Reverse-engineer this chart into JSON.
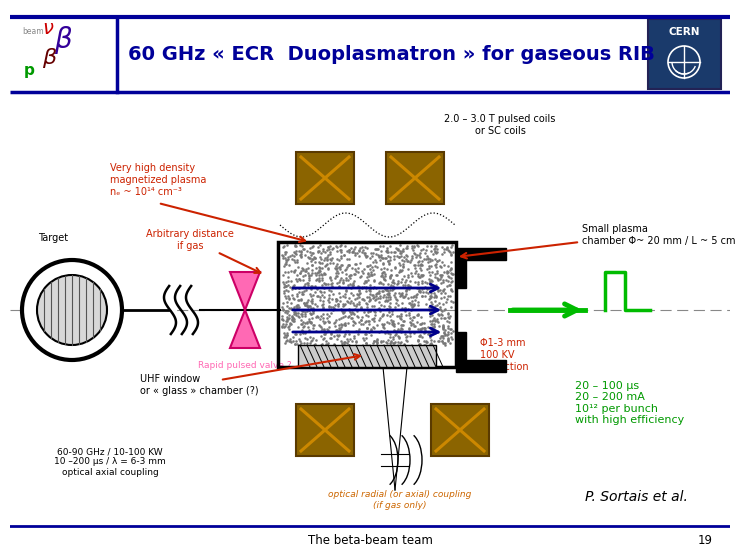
{
  "title": "60 GHz « ECR  Duoplasmatron » for gaseous RIB",
  "title_color": "#000099",
  "bg_color": "#ffffff",
  "footer_text": "The beta-beam team",
  "page_num": "19",
  "header_bar_color": "#000099",
  "annotations": {
    "coils_label": "2.0 – 3.0 T pulsed coils\nor SC coils",
    "plasma_label": "Very high density\nmagnetized plasma\nnₑ ~ 10¹⁴ cm⁻³",
    "small_chamber": "Small plasma\nchamber Φ~ 20 mm / L ~ 5 cm",
    "target_label": "Target",
    "arb_distance": "Arbitrary distance\nif gas",
    "rapid_valve": "Rapid pulsed valve ?",
    "uhf_window": "UHF window\nor « glass » chamber (?)",
    "phi_extraction": "Φ1-3 mm\n100 KV\nextraction",
    "pulse_params": "20 – 100 μs\n20 – 200 mA\n10¹² per bunch\nwith high efficiency",
    "bottom_left": "60-90 GHz / 10-100 KW\n10 –200 μs / λ = 6-3 mm\noptical axial coupling",
    "optical_coupling": "optical radial (or axial) coupling\n(if gas only)",
    "sortais": "P. Sortais et al."
  },
  "colors": {
    "magnet_fill": "#8B6400",
    "magnet_x": "#cc8800",
    "dark_blue_lines": "#00008B",
    "pink_valve": "#ff69b4",
    "annotation_red": "#cc2200",
    "annotation_green": "#009900",
    "annotation_black": "#000000",
    "annotation_orange": "#cc6600",
    "green_arrow": "#00bb00",
    "header_bar": "#000099"
  }
}
